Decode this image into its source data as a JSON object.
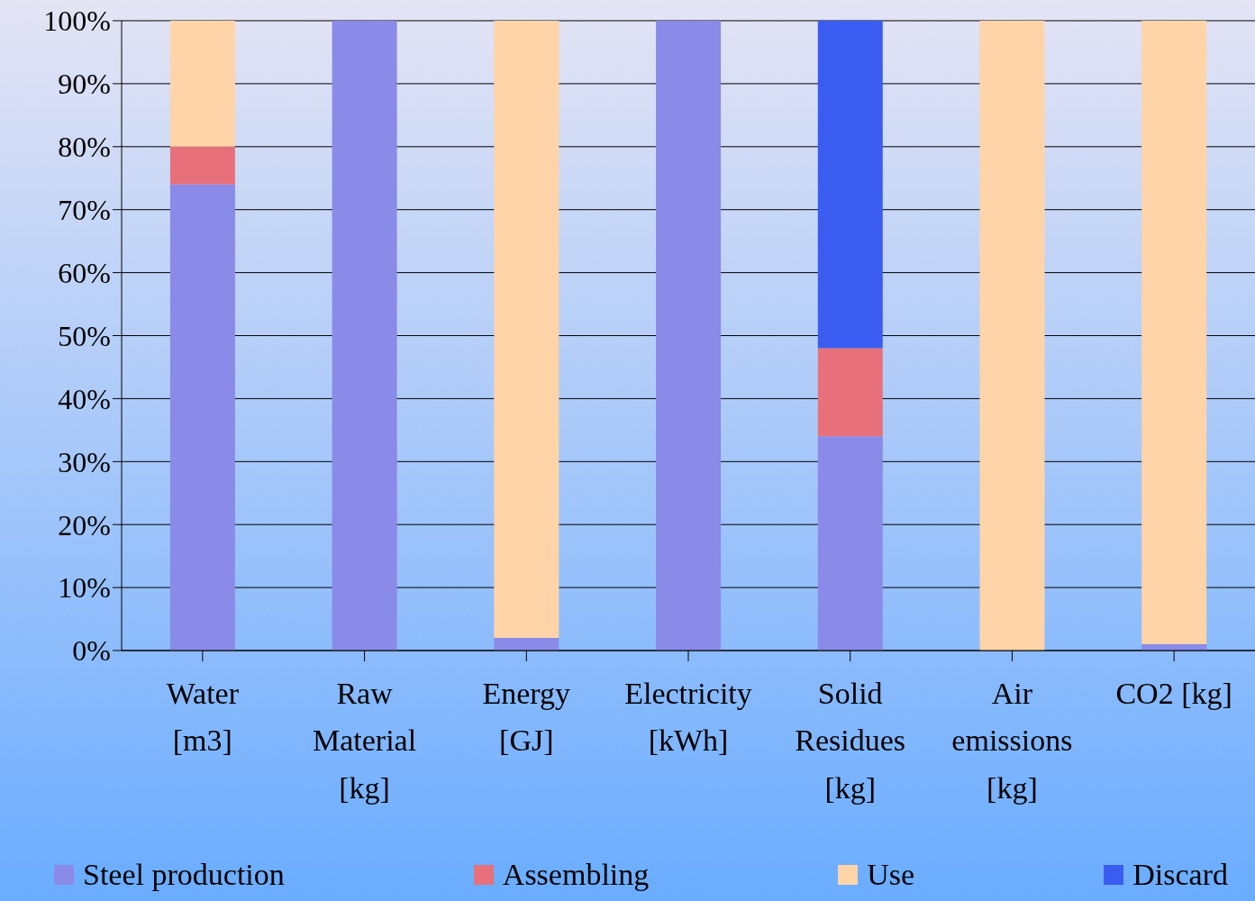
{
  "chart_data": {
    "type": "bar",
    "stacked": true,
    "categories": [
      "Water [m3]",
      "Raw Material [kg]",
      "Energy [GJ]",
      "Electricity [kWh]",
      "Solid Residues [kg]",
      "Air emissions [kg]",
      "CO2 [kg]"
    ],
    "series": [
      {
        "name": "Steel production",
        "color": "#8a8ae8",
        "values": [
          74,
          100,
          2,
          100,
          34,
          null,
          1
        ]
      },
      {
        "name": "Assembling",
        "color": "#e8707a",
        "values": [
          6,
          null,
          null,
          null,
          14,
          null,
          null
        ]
      },
      {
        "name": "Use",
        "color": "#ffd4a8",
        "values": [
          20,
          null,
          98,
          null,
          null,
          100,
          99
        ]
      },
      {
        "name": "Discard",
        "color": "#3a5cf0",
        "values": [
          null,
          null,
          null,
          null,
          52,
          null,
          null
        ]
      }
    ],
    "ylim": [
      0,
      100
    ],
    "yticks": [
      {
        "value": 0,
        "label": "0%"
      },
      {
        "value": 10,
        "label": "10%"
      },
      {
        "value": 20,
        "label": "20%"
      },
      {
        "value": 30,
        "label": "30%"
      },
      {
        "value": 40,
        "label": "40%"
      },
      {
        "value": 50,
        "label": "50%"
      },
      {
        "value": 60,
        "label": "60%"
      },
      {
        "value": 70,
        "label": "70%"
      },
      {
        "value": 80,
        "label": "80%"
      },
      {
        "value": 90,
        "label": "90%"
      },
      {
        "value": 100,
        "label": "100%"
      }
    ],
    "grid": "y",
    "legend": "bottom"
  }
}
